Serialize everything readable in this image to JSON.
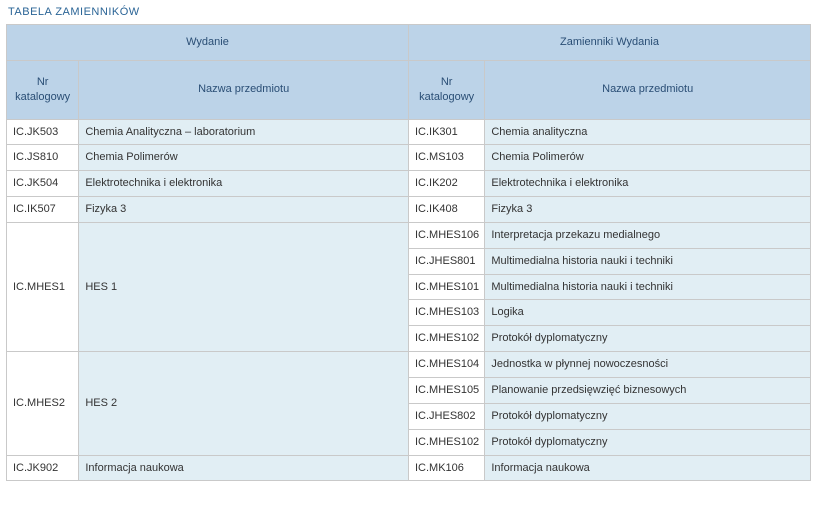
{
  "page_title": "TABELA ZAMIENNIKÓW",
  "colors": {
    "header_bg": "#bcd3e8",
    "header_text": "#2a4e75",
    "cell_white": "#ffffff",
    "cell_tint": "#e1eef4",
    "border": "#c9c9c9",
    "title_text": "#2a6496"
  },
  "headers": {
    "group_left": "Wydanie",
    "group_right": "Zamienniki Wydania",
    "cat": "Nr katalogowy",
    "name": "Nazwa przedmiotu"
  },
  "rows": [
    {
      "left_cat": "IC.JK503",
      "left_name": "Chemia Analityczna – laboratorium",
      "subs": [
        {
          "cat": "IC.IK301",
          "name": "Chemia analityczna"
        }
      ]
    },
    {
      "left_cat": "IC.JS810",
      "left_name": "Chemia Polimerów",
      "subs": [
        {
          "cat": "IC.MS103",
          "name": "Chemia Polimerów"
        }
      ]
    },
    {
      "left_cat": "IC.JK504",
      "left_name": "Elektrotechnika i elektronika",
      "subs": [
        {
          "cat": "IC.IK202",
          "name": "Elektrotechnika i elektronika"
        }
      ]
    },
    {
      "left_cat": "IC.IK507",
      "left_name": "Fizyka 3",
      "subs": [
        {
          "cat": "IC.IK408",
          "name": "Fizyka 3"
        }
      ]
    },
    {
      "left_cat": "IC.MHES1",
      "left_name": "HES 1",
      "subs": [
        {
          "cat": "IC.MHES106",
          "name": "Interpretacja przekazu medialnego"
        },
        {
          "cat": "IC.JHES801",
          "name": "Multimedialna historia nauki i techniki"
        },
        {
          "cat": "IC.MHES101",
          "name": "Multimedialna historia nauki i techniki"
        },
        {
          "cat": "IC.MHES103",
          "name": "Logika"
        },
        {
          "cat": "IC.MHES102",
          "name": "Protokół dyplomatyczny"
        }
      ]
    },
    {
      "left_cat": "IC.MHES2",
      "left_name": "HES 2",
      "subs": [
        {
          "cat": "IC.MHES104",
          "name": "Jednostka w płynnej nowoczesności"
        },
        {
          "cat": "IC.MHES105",
          "name": "Planowanie przedsięwzięć biznesowych"
        },
        {
          "cat": "IC.JHES802",
          "name": "Protokół dyplomatyczny"
        },
        {
          "cat": "IC.MHES102",
          "name": "Protokół dyplomatyczny"
        }
      ]
    },
    {
      "left_cat": "IC.JK902",
      "left_name": "Informacja naukowa",
      "subs": [
        {
          "cat": "IC.MK106",
          "name": "Informacja naukowa"
        }
      ]
    }
  ]
}
